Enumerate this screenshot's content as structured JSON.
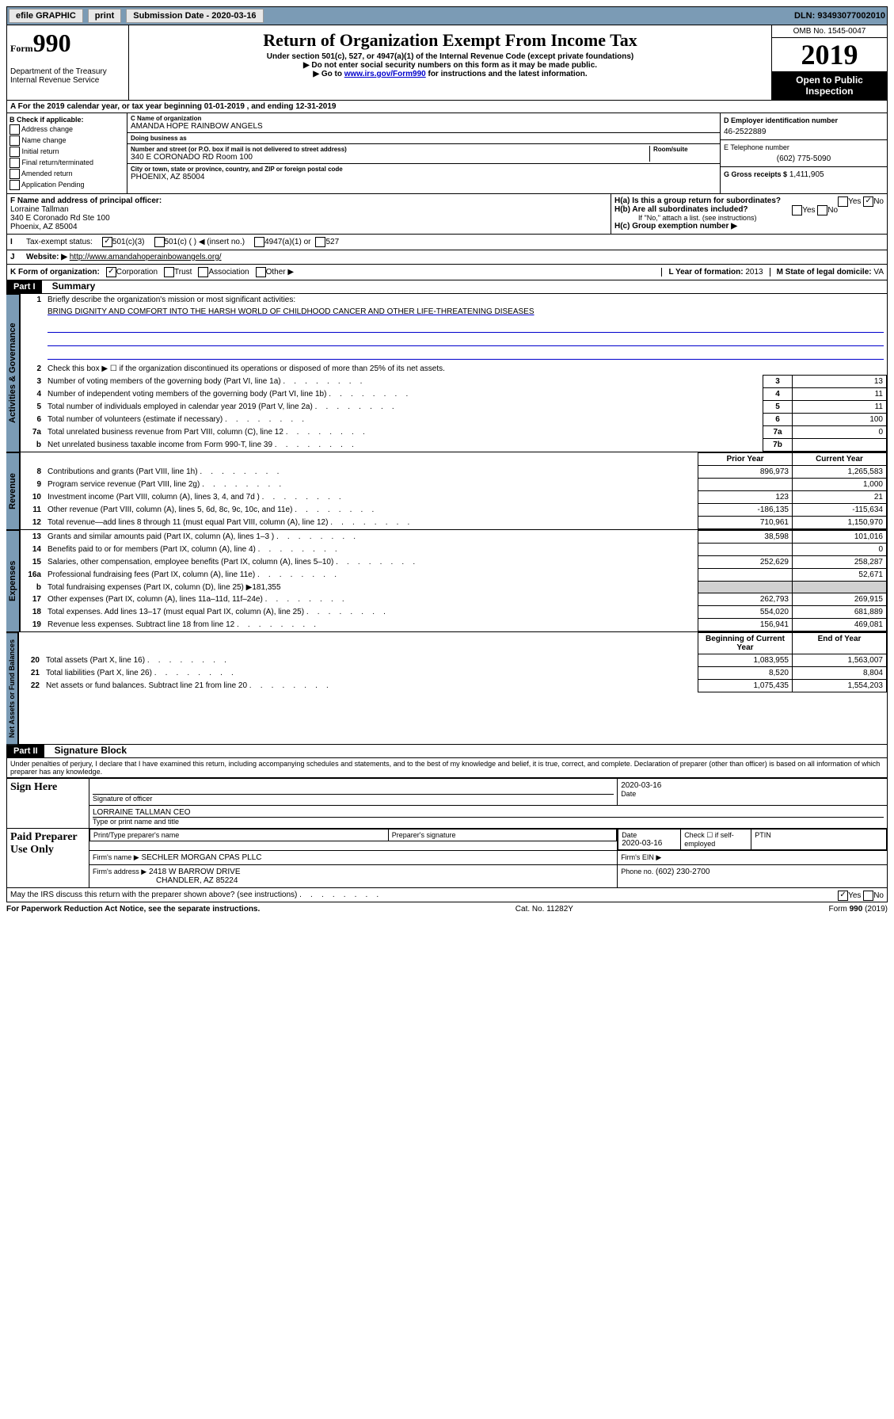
{
  "topbar": {
    "efile": "efile GRAPHIC",
    "print": "print",
    "sub_label": "Submission Date -",
    "sub_date": "2020-03-16",
    "dln": "DLN: 93493077002010"
  },
  "header": {
    "form_word": "Form",
    "form_num": "990",
    "dept": "Department of the Treasury Internal Revenue Service",
    "title": "Return of Organization Exempt From Income Tax",
    "sub1": "Under section 501(c), 527, or 4947(a)(1) of the Internal Revenue Code (except private foundations)",
    "sub2": "▶ Do not enter social security numbers on this form as it may be made public.",
    "sub3a": "▶ Go to ",
    "sub3link": "www.irs.gov/Form990",
    "sub3b": " for instructions and the latest information.",
    "omb": "OMB No. 1545-0047",
    "year": "2019",
    "open": "Open to Public Inspection"
  },
  "line_a": "A For the 2019 calendar year, or tax year beginning 01-01-2019    , and ending 12-31-2019",
  "col_b": {
    "title": "B Check if applicable:",
    "items": [
      "Address change",
      "Name change",
      "Initial return",
      "Final return/terminated",
      "Amended return",
      "Application Pending"
    ]
  },
  "c": {
    "name_label": "C Name of organization",
    "name": "AMANDA HOPE RAINBOW ANGELS",
    "dba_label": "Doing business as",
    "addr_label": "Number and street (or P.O. box if mail is not delivered to street address)",
    "room_label": "Room/suite",
    "addr": "340 E CORONADO RD Room 100",
    "city_label": "City or town, state or province, country, and ZIP or foreign postal code",
    "city": "PHOENIX, AZ  85004"
  },
  "d": {
    "label": "D Employer identification number",
    "val": "46-2522889"
  },
  "e": {
    "label": "E Telephone number",
    "val": "(602) 775-5090"
  },
  "g": {
    "label": "G Gross receipts $",
    "val": "1,411,905"
  },
  "f": {
    "label": "F  Name and address of principal officer:",
    "name": "Lorraine Tallman",
    "addr1": "340 E Coronado Rd Ste 100",
    "addr2": "Phoenix, AZ  85004"
  },
  "h": {
    "ha": "H(a)  Is this a group return for subordinates?",
    "hb": "H(b)  Are all subordinates included?",
    "hb_note": "If \"No,\" attach a list. (see instructions)",
    "hc": "H(c)  Group exemption number ▶",
    "yes": "Yes",
    "no": "No"
  },
  "i": {
    "label": "Tax-exempt status:",
    "o1": "501(c)(3)",
    "o2": "501(c) (   ) ◀ (insert no.)",
    "o3": "4947(a)(1) or",
    "o4": "527"
  },
  "j": {
    "label": "Website: ▶",
    "url": "http://www.amandahoperainbowangels.org/"
  },
  "k": {
    "label": "K Form of organization:",
    "corp": "Corporation",
    "trust": "Trust",
    "assoc": "Association",
    "other": "Other ▶"
  },
  "l": {
    "label": "L Year of formation:",
    "val": "2013"
  },
  "m": {
    "label": "M State of legal domicile:",
    "val": "VA"
  },
  "part1": {
    "num": "Part I",
    "title": "Summary"
  },
  "summary": {
    "l1": "Briefly describe the organization's mission or most significant activities:",
    "mission": "BRING DIGNITY AND COMFORT INTO THE HARSH WORLD OF CHILDHOOD CANCER AND OTHER LIFE-THREATENING DISEASES",
    "l2": "Check this box ▶ ☐  if the organization discontinued its operations or disposed of more than 25% of its net assets.",
    "rows": [
      {
        "n": "3",
        "t": "Number of voting members of the governing body (Part VI, line 1a)",
        "box": "3",
        "v": "13"
      },
      {
        "n": "4",
        "t": "Number of independent voting members of the governing body (Part VI, line 1b)",
        "box": "4",
        "v": "11"
      },
      {
        "n": "5",
        "t": "Total number of individuals employed in calendar year 2019 (Part V, line 2a)",
        "box": "5",
        "v": "11"
      },
      {
        "n": "6",
        "t": "Total number of volunteers (estimate if necessary)",
        "box": "6",
        "v": "100"
      },
      {
        "n": "7a",
        "t": "Total unrelated business revenue from Part VIII, column (C), line 12",
        "box": "7a",
        "v": "0"
      },
      {
        "n": "b",
        "t": "Net unrelated business taxable income from Form 990-T, line 39",
        "box": "7b",
        "v": ""
      }
    ],
    "py": "Prior Year",
    "cy": "Current Year",
    "rev": [
      {
        "n": "8",
        "t": "Contributions and grants (Part VIII, line 1h)",
        "p": "896,973",
        "c": "1,265,583"
      },
      {
        "n": "9",
        "t": "Program service revenue (Part VIII, line 2g)",
        "p": "",
        "c": "1,000"
      },
      {
        "n": "10",
        "t": "Investment income (Part VIII, column (A), lines 3, 4, and 7d )",
        "p": "123",
        "c": "21"
      },
      {
        "n": "11",
        "t": "Other revenue (Part VIII, column (A), lines 5, 6d, 8c, 9c, 10c, and 11e)",
        "p": "-186,135",
        "c": "-115,634"
      },
      {
        "n": "12",
        "t": "Total revenue—add lines 8 through 11 (must equal Part VIII, column (A), line 12)",
        "p": "710,961",
        "c": "1,150,970"
      }
    ],
    "exp": [
      {
        "n": "13",
        "t": "Grants and similar amounts paid (Part IX, column (A), lines 1–3 )",
        "p": "38,598",
        "c": "101,016"
      },
      {
        "n": "14",
        "t": "Benefits paid to or for members (Part IX, column (A), line 4)",
        "p": "",
        "c": "0"
      },
      {
        "n": "15",
        "t": "Salaries, other compensation, employee benefits (Part IX, column (A), lines 5–10)",
        "p": "252,629",
        "c": "258,287"
      },
      {
        "n": "16a",
        "t": "Professional fundraising fees (Part IX, column (A), line 11e)",
        "p": "",
        "c": "52,671"
      },
      {
        "n": "b",
        "t": "Total fundraising expenses (Part IX, column (D), line 25) ▶181,355",
        "shade": true
      },
      {
        "n": "17",
        "t": "Other expenses (Part IX, column (A), lines 11a–11d, 11f–24e)",
        "p": "262,793",
        "c": "269,915"
      },
      {
        "n": "18",
        "t": "Total expenses. Add lines 13–17 (must equal Part IX, column (A), line 25)",
        "p": "554,020",
        "c": "681,889"
      },
      {
        "n": "19",
        "t": "Revenue less expenses. Subtract line 18 from line 12",
        "p": "156,941",
        "c": "469,081"
      }
    ],
    "boy": "Beginning of Current Year",
    "eoy": "End of Year",
    "net": [
      {
        "n": "20",
        "t": "Total assets (Part X, line 16)",
        "p": "1,083,955",
        "c": "1,563,007"
      },
      {
        "n": "21",
        "t": "Total liabilities (Part X, line 26)",
        "p": "8,520",
        "c": "8,804"
      },
      {
        "n": "22",
        "t": "Net assets or fund balances. Subtract line 21 from line 20",
        "p": "1,075,435",
        "c": "1,554,203"
      }
    ],
    "vlab1": "Activities & Governance",
    "vlab2": "Revenue",
    "vlab3": "Expenses",
    "vlab4": "Net Assets or Fund Balances"
  },
  "part2": {
    "num": "Part II",
    "title": "Signature Block"
  },
  "sig": {
    "perjury": "Under penalties of perjury, I declare that I have examined this return, including accompanying schedules and statements, and to the best of my knowledge and belief, it is true, correct, and complete. Declaration of preparer (other than officer) is based on all information of which preparer has any knowledge.",
    "sign_here": "Sign Here",
    "sig_officer": "Signature of officer",
    "sig_date": "2020-03-16",
    "date_label": "Date",
    "name_title": "LORRAINE TALLMAN  CEO",
    "name_label": "Type or print name and title",
    "paid": "Paid Preparer Use Only",
    "prep_name_label": "Print/Type preparer's name",
    "prep_sig_label": "Preparer's signature",
    "prep_date": "2020-03-16",
    "check_self": "Check ☐ if self-employed",
    "ptin": "PTIN",
    "firm_name_label": "Firm's name    ▶",
    "firm_name": "SECHLER MORGAN CPAS PLLC",
    "firm_ein": "Firm's EIN ▶",
    "firm_addr_label": "Firm's address ▶",
    "firm_addr1": "2418 W BARROW DRIVE",
    "firm_addr2": "CHANDLER, AZ  85224",
    "phone_label": "Phone no.",
    "phone": "(602) 230-2700"
  },
  "footer": {
    "discuss": "May the IRS discuss this return with the preparer shown above? (see instructions)",
    "paperwork": "For Paperwork Reduction Act Notice, see the separate instructions.",
    "cat": "Cat. No. 11282Y",
    "form": "Form 990 (2019)"
  }
}
